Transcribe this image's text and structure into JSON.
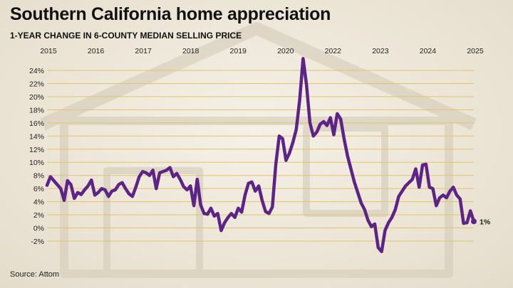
{
  "title": "Southern California home appreciation",
  "subtitle": "1-YEAR CHANGE IN 6-COUNTY MEDIAN SELLING PRICE",
  "source": "Source: Attom",
  "chart_data": {
    "type": "line",
    "title": "Southern California home appreciation",
    "subtitle": "1-YEAR CHANGE IN 6-COUNTY MEDIAN SELLING PRICE",
    "x_tick_labels": [
      "2015",
      "2016",
      "2017",
      "2018",
      "2019",
      "2020",
      "2022",
      "2023",
      "2024",
      "2025"
    ],
    "y_tick_labels": [
      "24%",
      "22%",
      "20%",
      "18%",
      "16%",
      "14%",
      "12%",
      "10%",
      "8%",
      "6%",
      "4%",
      "2%",
      "0%",
      "-2%"
    ],
    "ylim": [
      -2,
      24
    ],
    "grid": "horizontal",
    "line_color": "#5c2486",
    "grid_color": "#e2c36b",
    "end_label": "1%",
    "series": [
      {
        "values": [
          6.5,
          7.8,
          7.2,
          6.6,
          6.0,
          4.2,
          7.2,
          6.6,
          4.5,
          5.4,
          5.1,
          5.8,
          6.4,
          7.3,
          5.0,
          5.4,
          6.0,
          5.8,
          4.8,
          5.6,
          5.8,
          6.6,
          6.9,
          6.0,
          5.2,
          4.8,
          6.2,
          7.8,
          8.6,
          8.4,
          8.0,
          8.8,
          6.0,
          8.4,
          8.6,
          8.8,
          9.2,
          7.8,
          8.3,
          7.4,
          6.3,
          5.8,
          6.4,
          3.4,
          7.4,
          3.5,
          2.2,
          2.1,
          3.0,
          1.8,
          2.2,
          -0.4,
          0.8,
          1.6,
          2.2,
          1.6,
          3.0,
          2.4,
          5.0,
          6.8,
          7.0,
          5.6,
          6.4,
          4.2,
          2.5,
          2.2,
          3.2,
          9.7,
          14.0,
          13.6,
          10.3,
          11.4,
          13.0,
          15.0,
          19.5,
          25.8,
          21.8,
          16.0,
          14.0,
          14.6,
          15.8,
          16.2,
          15.6,
          16.8,
          14.2,
          17.4,
          16.6,
          13.6,
          11.0,
          9.0,
          7.0,
          5.4,
          3.8,
          2.8,
          1.2,
          0.2,
          0.6,
          -3.0,
          -3.6,
          -0.4,
          0.8,
          1.6,
          2.8,
          4.8,
          5.6,
          6.4,
          6.9,
          7.4,
          9.0,
          6.2,
          9.6,
          9.7,
          6.2,
          6.0,
          3.4,
          4.6,
          5.0,
          4.6,
          5.6,
          6.2,
          5.0,
          4.4,
          0.7,
          0.8,
          2.6,
          1.0
        ]
      }
    ]
  }
}
